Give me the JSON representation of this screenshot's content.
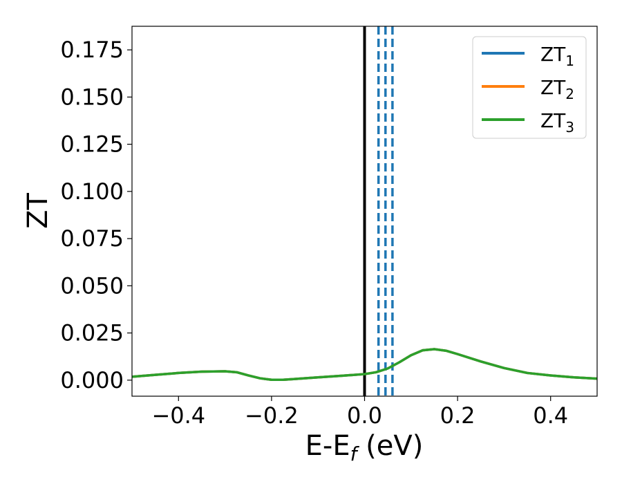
{
  "chart_data": {
    "type": "line",
    "xlabel": "E-E",
    "xlabel_sub": "f",
    "xlabel_unit": " (eV)",
    "ylabel": "ZT",
    "xlim": [
      -0.5,
      0.5
    ],
    "ylim": [
      -0.0085,
      0.1875
    ],
    "xticks": [
      -0.4,
      -0.2,
      0.0,
      0.2,
      0.4
    ],
    "xtick_labels": [
      "−0.4",
      "−0.2",
      "0.0",
      "0.2",
      "0.4"
    ],
    "yticks": [
      0.0,
      0.025,
      0.05,
      0.075,
      0.1,
      0.125,
      0.15,
      0.175
    ],
    "ytick_labels": [
      "0.000",
      "0.025",
      "0.050",
      "0.075",
      "0.100",
      "0.125",
      "0.150",
      "0.175"
    ],
    "grid": false,
    "legend_position": "top-right",
    "x": [
      -0.5,
      -0.45,
      -0.4,
      -0.35,
      -0.3,
      -0.275,
      -0.25,
      -0.225,
      -0.2,
      -0.175,
      -0.15,
      -0.1,
      -0.05,
      0.0,
      0.025,
      0.05,
      0.075,
      0.1,
      0.125,
      0.15,
      0.175,
      0.2,
      0.25,
      0.3,
      0.35,
      0.4,
      0.45,
      0.5
    ],
    "series": [
      {
        "name": "ZT",
        "name_sub": "1",
        "color": "#1f77b4",
        "values": [
          0.0018,
          0.0028,
          0.0038,
          0.0045,
          0.0047,
          0.0042,
          0.0025,
          0.001,
          0.0002,
          0.0002,
          0.0006,
          0.0015,
          0.0023,
          0.0032,
          0.0042,
          0.0062,
          0.0095,
          0.0132,
          0.0158,
          0.0164,
          0.0156,
          0.0138,
          0.0099,
          0.0064,
          0.0038,
          0.0025,
          0.0015,
          0.0008
        ]
      },
      {
        "name": "ZT",
        "name_sub": "2",
        "color": "#ff7f0e",
        "values": [
          0.0018,
          0.0028,
          0.0038,
          0.0045,
          0.0047,
          0.0042,
          0.0025,
          0.001,
          0.0002,
          0.0002,
          0.0006,
          0.0015,
          0.0023,
          0.0032,
          0.0042,
          0.0062,
          0.0095,
          0.0132,
          0.0158,
          0.0164,
          0.0156,
          0.0138,
          0.0099,
          0.0064,
          0.0038,
          0.0025,
          0.0015,
          0.0008
        ]
      },
      {
        "name": "ZT",
        "name_sub": "3",
        "color": "#2ca02c",
        "values": [
          0.0018,
          0.0028,
          0.0038,
          0.0045,
          0.0047,
          0.0042,
          0.0025,
          0.001,
          0.0002,
          0.0002,
          0.0006,
          0.0015,
          0.0023,
          0.0032,
          0.0042,
          0.0062,
          0.0095,
          0.0132,
          0.0158,
          0.0164,
          0.0156,
          0.0138,
          0.0099,
          0.0064,
          0.0038,
          0.0025,
          0.0015,
          0.0008
        ]
      }
    ],
    "vlines": [
      {
        "x": 0.0,
        "style": "solid",
        "color": "#000000"
      },
      {
        "x": 0.03,
        "style": "dashed",
        "color": "#1f77b4"
      },
      {
        "x": 0.045,
        "style": "dashed",
        "color": "#1f77b4"
      },
      {
        "x": 0.06,
        "style": "dashed",
        "color": "#1f77b4"
      }
    ]
  }
}
